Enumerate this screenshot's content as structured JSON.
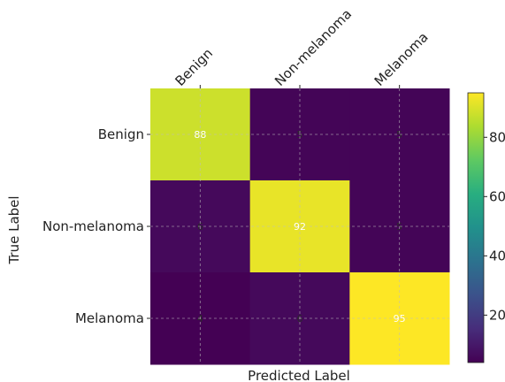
{
  "chart_data": {
    "type": "heatmap",
    "title": "",
    "xlabel": "Predicted Label",
    "ylabel": "True Label",
    "x_categories": [
      "Benign",
      "Non-melanoma",
      "Melanoma"
    ],
    "y_categories": [
      "Benign",
      "Non-melanoma",
      "Melanoma"
    ],
    "values": [
      [
        88,
        5,
        5
      ],
      [
        6,
        92,
        5
      ],
      [
        4,
        6,
        95
      ]
    ],
    "cell_labels": [
      [
        "88",
        "5",
        "5"
      ],
      [
        "6",
        "92",
        "5"
      ],
      [
        "4",
        "6",
        "95"
      ]
    ],
    "colormap": "viridis",
    "vmin": 4,
    "vmax": 95,
    "colorbar_ticks": [
      20,
      40,
      60,
      80
    ],
    "grid": true,
    "colors": {
      "low": "#440154",
      "high": "#fde725",
      "grid": "#bdbdbd",
      "high_text": "#ffffff",
      "low_text": "#2b2b2b"
    }
  }
}
